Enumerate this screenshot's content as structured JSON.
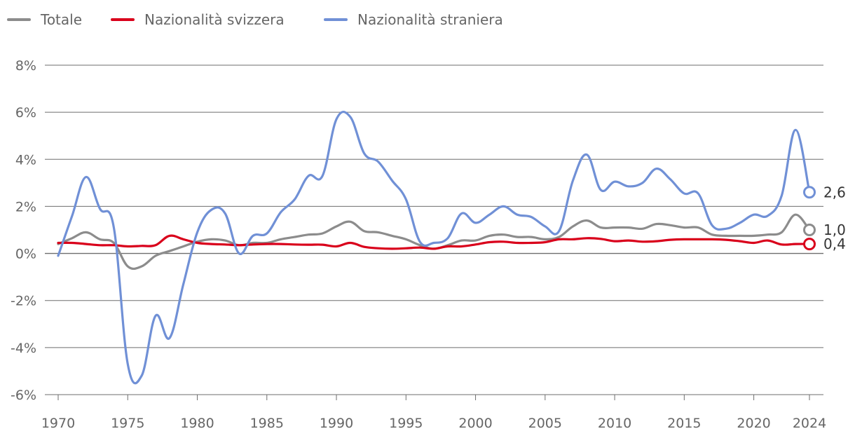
{
  "chart_data": {
    "type": "line",
    "title": "",
    "xlabel": "",
    "ylabel": "",
    "xlim": [
      1970,
      2024
    ],
    "ylim": [
      -6,
      8
    ],
    "x_ticks": [
      "1970",
      "1975",
      "1980",
      "1985",
      "1990",
      "1995",
      "2000",
      "2005",
      "2010",
      "2015",
      "2020",
      "2024"
    ],
    "y_ticks": [
      "8%",
      "6%",
      "4%",
      "2%",
      "0%",
      "-2%",
      "-4%",
      "-6%"
    ],
    "grid": "horizontal",
    "legend_position": "top-left",
    "x": [
      1970,
      1971,
      1972,
      1973,
      1974,
      1975,
      1976,
      1977,
      1978,
      1979,
      1980,
      1981,
      1982,
      1983,
      1984,
      1985,
      1986,
      1987,
      1988,
      1989,
      1990,
      1991,
      1992,
      1993,
      1994,
      1995,
      1996,
      1997,
      1998,
      1999,
      2000,
      2001,
      2002,
      2003,
      2004,
      2005,
      2006,
      2007,
      2008,
      2009,
      2010,
      2011,
      2012,
      2013,
      2014,
      2015,
      2016,
      2017,
      2018,
      2019,
      2020,
      2021,
      2022,
      2023,
      2024
    ],
    "series": [
      {
        "name": "Totale",
        "color": "#8c8c8c",
        "values": [
          0.4,
          0.65,
          0.9,
          0.6,
          0.45,
          -0.55,
          -0.55,
          -0.1,
          0.1,
          0.3,
          0.5,
          0.6,
          0.55,
          0.35,
          0.45,
          0.45,
          0.6,
          0.7,
          0.8,
          0.85,
          1.15,
          1.35,
          0.95,
          0.9,
          0.75,
          0.6,
          0.35,
          0.2,
          0.35,
          0.55,
          0.55,
          0.75,
          0.8,
          0.7,
          0.7,
          0.6,
          0.7,
          1.15,
          1.4,
          1.1,
          1.1,
          1.1,
          1.05,
          1.25,
          1.2,
          1.1,
          1.1,
          0.8,
          0.75,
          0.75,
          0.75,
          0.8,
          0.9,
          1.65,
          1.0
        ],
        "end_label": "1,0"
      },
      {
        "name": "Nazionalità svizzera",
        "color": "#d9001b",
        "values": [
          0.45,
          0.45,
          0.4,
          0.35,
          0.35,
          0.3,
          0.32,
          0.35,
          0.75,
          0.6,
          0.45,
          0.4,
          0.38,
          0.35,
          0.38,
          0.4,
          0.4,
          0.38,
          0.37,
          0.37,
          0.3,
          0.45,
          0.28,
          0.22,
          0.2,
          0.22,
          0.25,
          0.2,
          0.3,
          0.3,
          0.38,
          0.48,
          0.5,
          0.45,
          0.45,
          0.48,
          0.6,
          0.6,
          0.65,
          0.62,
          0.52,
          0.55,
          0.5,
          0.52,
          0.58,
          0.6,
          0.6,
          0.6,
          0.58,
          0.52,
          0.45,
          0.55,
          0.38,
          0.4,
          0.4
        ],
        "end_label": "0,4"
      },
      {
        "name": "Nazionalità straniera",
        "color": "#7090d6",
        "values": [
          -0.1,
          1.6,
          3.25,
          1.9,
          1.1,
          -4.7,
          -5.2,
          -2.65,
          -3.6,
          -1.3,
          0.9,
          1.85,
          1.7,
          0.0,
          0.75,
          0.85,
          1.75,
          2.3,
          3.3,
          3.3,
          5.7,
          5.8,
          4.25,
          3.9,
          3.1,
          2.3,
          0.5,
          0.45,
          0.65,
          1.7,
          1.3,
          1.65,
          2.0,
          1.65,
          1.55,
          1.15,
          0.95,
          3.1,
          4.2,
          2.7,
          3.05,
          2.85,
          3.0,
          3.6,
          3.15,
          2.55,
          2.55,
          1.2,
          1.05,
          1.3,
          1.65,
          1.6,
          2.45,
          5.25,
          2.6
        ],
        "end_label": "2,6"
      }
    ]
  }
}
